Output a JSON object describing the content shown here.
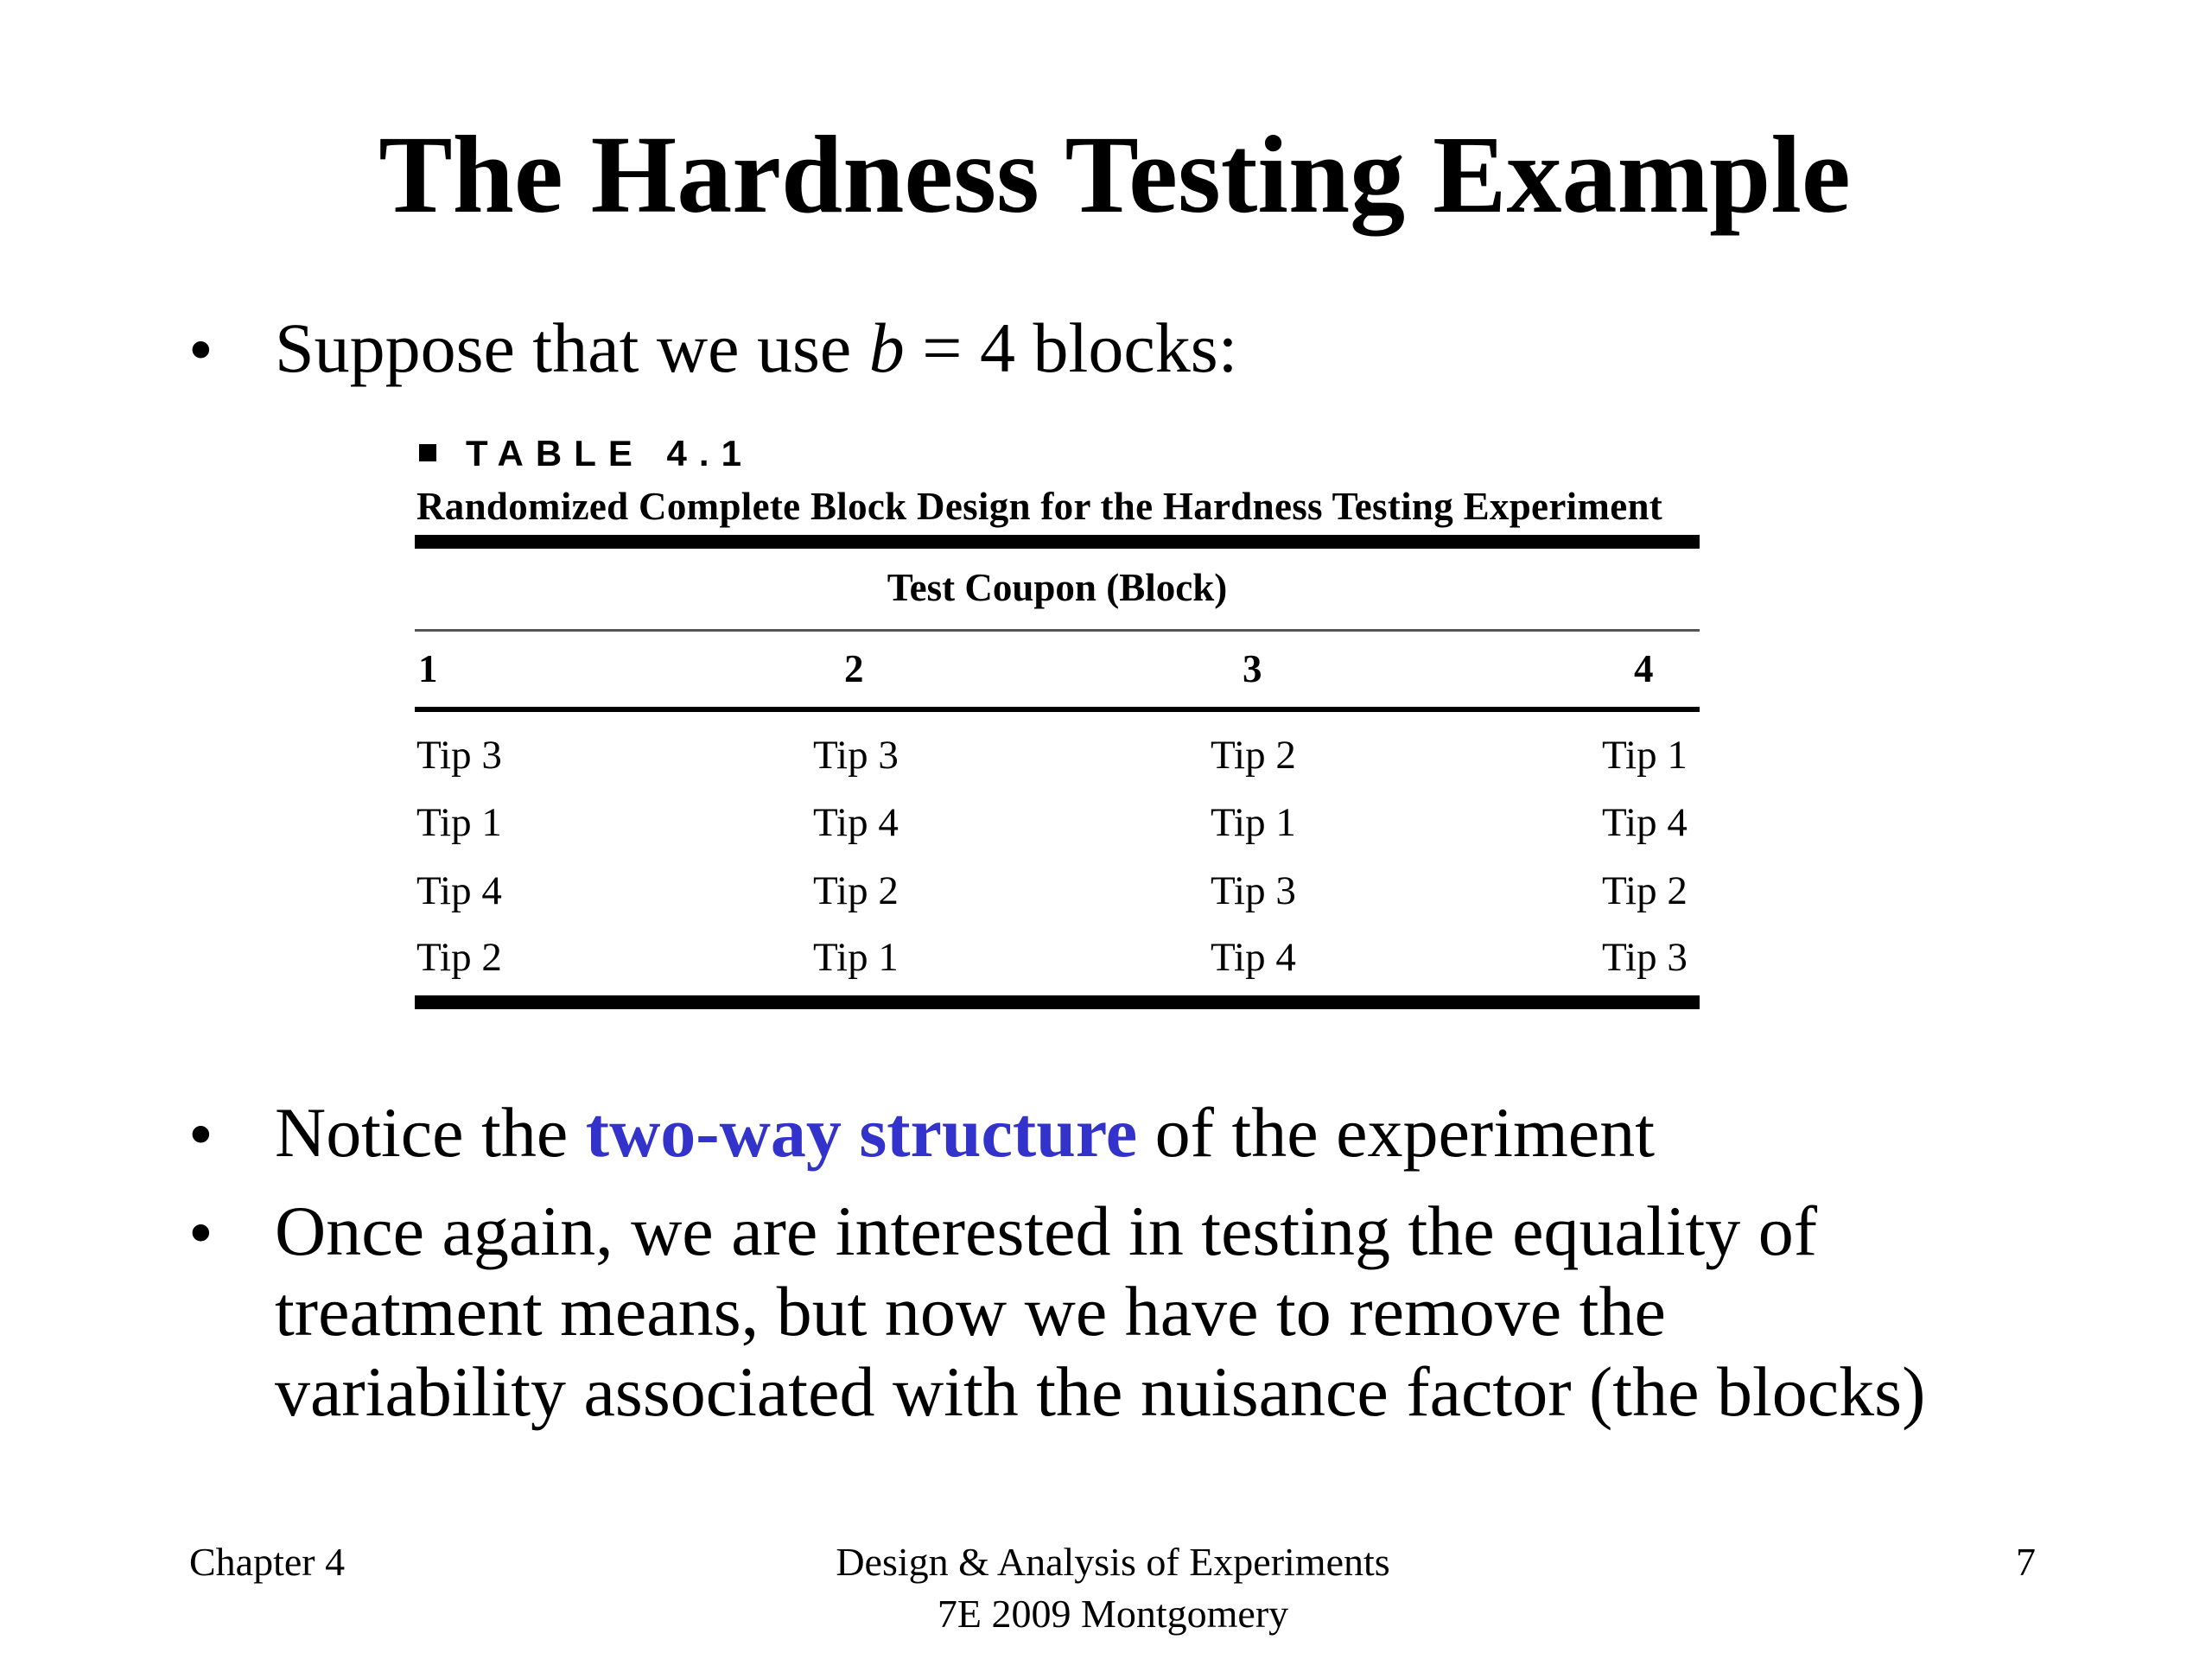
{
  "slide": {
    "title": "The Hardness Testing Example",
    "bullets": [
      {
        "text_before": "Suppose that we use ",
        "var": "b",
        "text_after": " = 4 blocks:"
      },
      {
        "text_before": "Notice the ",
        "emphasis": "two-way structure",
        "text_after": " of the experiment",
        "emphasis_color": "#3333cc"
      },
      {
        "lines": [
          "Once again, we are interested in testing the equality of",
          "treatment means, but now we have to remove the",
          "variability associated with the nuisance factor (the blocks)"
        ]
      }
    ],
    "bullet_glyph": "•"
  },
  "table": {
    "label": "TABLE 4.1",
    "caption": "Randomized Complete Block Design for the Hardness Testing Experiment",
    "group_header": "Test Coupon (Block)",
    "columns": [
      "1",
      "2",
      "3",
      "4"
    ],
    "rows": [
      [
        "Tip 3",
        "Tip 3",
        "Tip 2",
        "Tip 1"
      ],
      [
        "Tip 1",
        "Tip 4",
        "Tip 1",
        "Tip 4"
      ],
      [
        "Tip 4",
        "Tip 2",
        "Tip 3",
        "Tip 2"
      ],
      [
        "Tip 2",
        "Tip 1",
        "Tip 4",
        "Tip 3"
      ]
    ]
  },
  "footer": {
    "left": "Chapter 4",
    "center_line1": "Design & Analysis of Experiments",
    "center_line2": "7E 2009 Montgomery",
    "page_number": "7"
  }
}
